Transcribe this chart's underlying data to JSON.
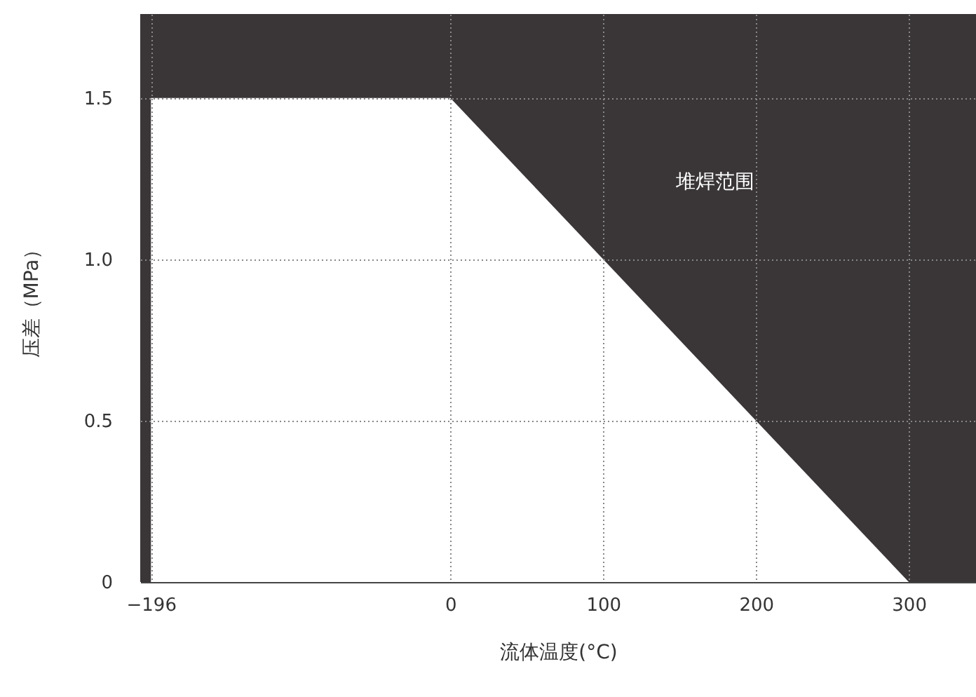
{
  "chart_data": {
    "type": "area",
    "xlabel": "流体温度(°C)",
    "ylabel": "压差（MPa）",
    "series": [
      {
        "color": "#ffffff",
        "x": [
          -196,
          0,
          300
        ],
        "values": [
          1.5,
          1.5,
          0
        ]
      }
    ],
    "xlim": [
      -203,
      344
    ],
    "ylim": [
      0,
      1.76
    ],
    "xticks": [
      -196,
      0,
      100,
      200,
      300
    ],
    "yticks": [
      {
        "value": 0,
        "label": "0"
      },
      0.5,
      {
        "value": 1,
        "label": "1.0"
      },
      1.5
    ],
    "grid": true,
    "line_style": "dotted",
    "bands": [
      {
        "axis": "y",
        "from": 0,
        "to": 1.76,
        "label": "堆焊范围",
        "color": "#3a3637"
      }
    ]
  }
}
